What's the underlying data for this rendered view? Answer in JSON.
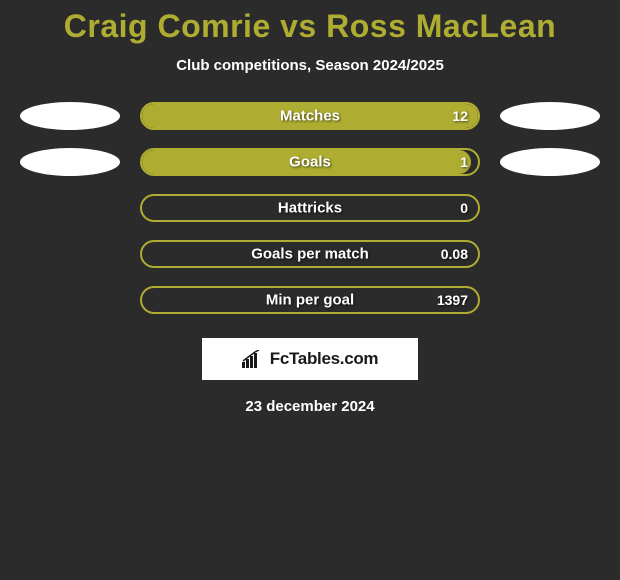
{
  "title": "Craig Comrie vs Ross MacLean",
  "subtitle": "Club competitions, Season 2024/2025",
  "colors": {
    "background": "#2b2b2b",
    "title_color": "#aead32",
    "text_color": "#ffffff",
    "bar_fill": "#aead32",
    "bar_border": "#aead32",
    "oval_fill": "#ffffff",
    "brand_bg": "#ffffff",
    "brand_text": "#1a1a1a"
  },
  "typography": {
    "title_fontsize": 32,
    "title_weight": 900,
    "subtitle_fontsize": 15,
    "label_fontsize": 15,
    "value_fontsize": 14,
    "date_fontsize": 15,
    "font_family": "Arial, Helvetica, sans-serif"
  },
  "bar_layout": {
    "track_width": 340,
    "track_height": 28,
    "border_radius": 14,
    "border_width": 2,
    "oval_width": 100,
    "oval_height": 28,
    "row_gap": 18
  },
  "rows": [
    {
      "label": "Matches",
      "value": "12",
      "fill_pct": 100,
      "left_oval": true,
      "right_oval": true
    },
    {
      "label": "Goals",
      "value": "1",
      "fill_pct": 98,
      "left_oval": true,
      "right_oval": true
    },
    {
      "label": "Hattricks",
      "value": "0",
      "fill_pct": 0,
      "left_oval": false,
      "right_oval": false
    },
    {
      "label": "Goals per match",
      "value": "0.08",
      "fill_pct": 0,
      "left_oval": false,
      "right_oval": false
    },
    {
      "label": "Min per goal",
      "value": "1397",
      "fill_pct": 0,
      "left_oval": false,
      "right_oval": false
    }
  ],
  "brand": {
    "text": "FcTables.com"
  },
  "date": "23 december 2024"
}
